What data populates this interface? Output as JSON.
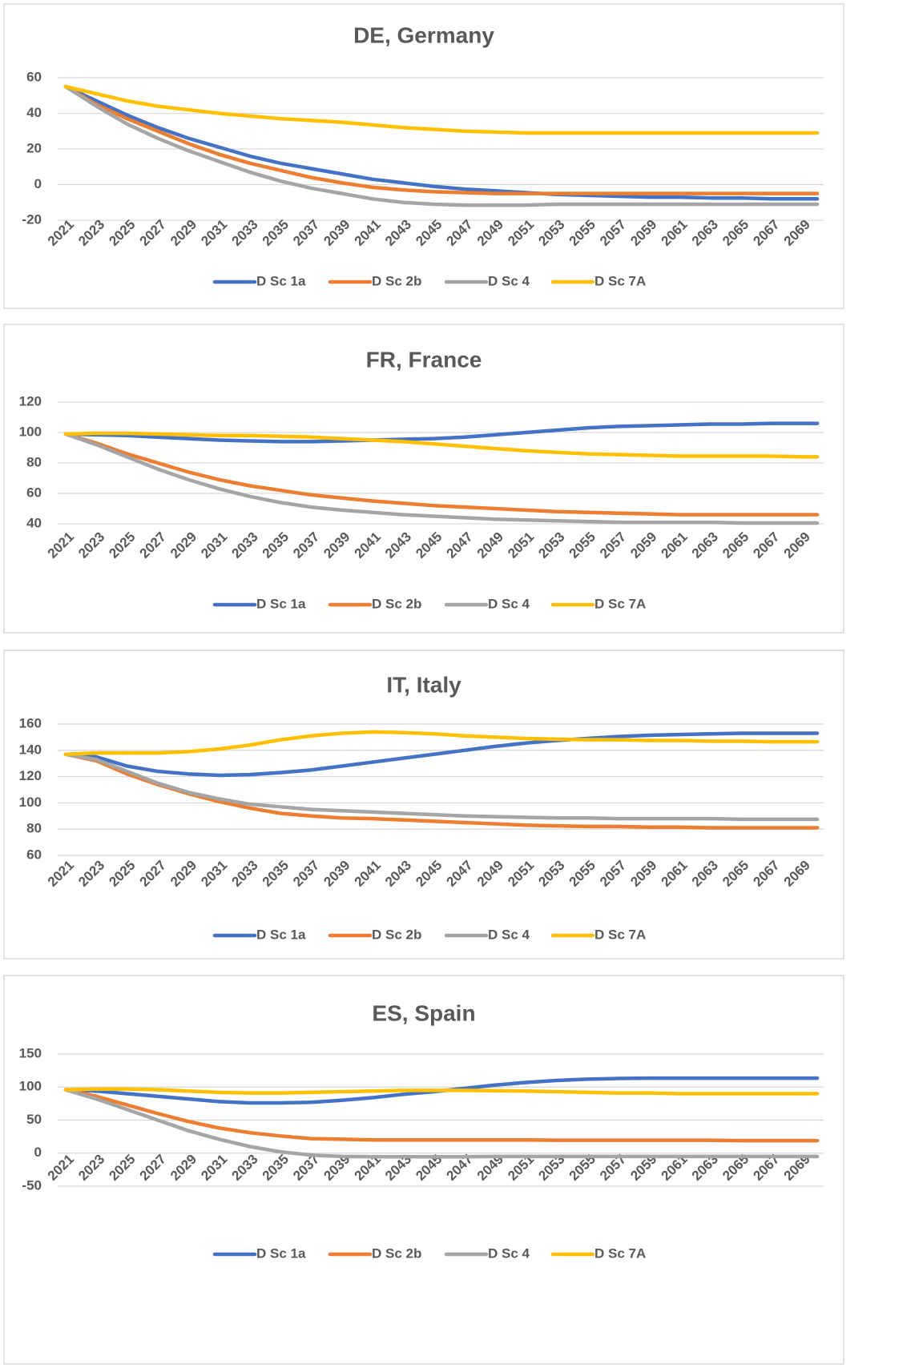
{
  "chart_data": [
    {
      "type": "line",
      "title": "DE, Germany",
      "x": [
        2021,
        2023,
        2025,
        2027,
        2029,
        2031,
        2033,
        2035,
        2037,
        2039,
        2041,
        2043,
        2045,
        2047,
        2049,
        2051,
        2053,
        2055,
        2057,
        2059,
        2061,
        2063,
        2065,
        2067,
        2069,
        2070
      ],
      "xlim": [
        2021,
        2070
      ],
      "xticks": [
        2021,
        2023,
        2025,
        2027,
        2029,
        2031,
        2033,
        2035,
        2037,
        2039,
        2041,
        2043,
        2045,
        2047,
        2049,
        2051,
        2053,
        2055,
        2057,
        2059,
        2061,
        2063,
        2065,
        2067,
        2069
      ],
      "ylim": [
        -20,
        60
      ],
      "yticks": [
        -20,
        0,
        20,
        40,
        60
      ],
      "grid": true,
      "legend": "bottom",
      "series": [
        {
          "name": "D Sc 1a",
          "color": "#4472c4",
          "values": [
            55,
            47,
            39,
            32,
            26,
            21,
            16,
            12,
            9,
            6,
            3,
            1,
            -1,
            -2.5,
            -3.5,
            -4.5,
            -5.5,
            -6,
            -6.5,
            -7,
            -7,
            -7.5,
            -7.5,
            -8,
            -8,
            -8
          ]
        },
        {
          "name": "D Sc 2b",
          "color": "#ed7d31",
          "values": [
            55,
            45,
            37,
            30,
            23,
            17,
            12,
            8,
            4,
            1,
            -1.5,
            -3,
            -4,
            -4.5,
            -5,
            -5,
            -5,
            -5,
            -5,
            -5,
            -5,
            -5,
            -5,
            -5,
            -5,
            -5
          ]
        },
        {
          "name": "D Sc 4",
          "color": "#a5a5a5",
          "values": [
            55,
            44,
            34,
            26,
            19,
            13,
            7,
            2,
            -2,
            -5,
            -8,
            -10,
            -11,
            -11.5,
            -11.5,
            -11.5,
            -11,
            -11,
            -11,
            -11,
            -11,
            -11,
            -11,
            -11,
            -11,
            -11
          ]
        },
        {
          "name": "D Sc 7A",
          "color": "#ffc000",
          "values": [
            55,
            51,
            47,
            44,
            42,
            40,
            38.5,
            37,
            36,
            35,
            33.5,
            32,
            31,
            30,
            29.5,
            29,
            29,
            29,
            29,
            29,
            29,
            29,
            29,
            29,
            29,
            29
          ]
        }
      ]
    },
    {
      "type": "line",
      "title": "FR, France",
      "x": [
        2021,
        2023,
        2025,
        2027,
        2029,
        2031,
        2033,
        2035,
        2037,
        2039,
        2041,
        2043,
        2045,
        2047,
        2049,
        2051,
        2053,
        2055,
        2057,
        2059,
        2061,
        2063,
        2065,
        2067,
        2069,
        2070
      ],
      "xlim": [
        2021,
        2070
      ],
      "xticks": [
        2021,
        2023,
        2025,
        2027,
        2029,
        2031,
        2033,
        2035,
        2037,
        2039,
        2041,
        2043,
        2045,
        2047,
        2049,
        2051,
        2053,
        2055,
        2057,
        2059,
        2061,
        2063,
        2065,
        2067,
        2069
      ],
      "ylim": [
        40,
        120
      ],
      "yticks": [
        40,
        60,
        80,
        100,
        120
      ],
      "grid": true,
      "legend": "bottom",
      "series": [
        {
          "name": "D Sc 1a",
          "color": "#4472c4",
          "values": [
            99,
            98.5,
            98,
            97,
            96,
            95,
            94.5,
            94,
            94,
            94.5,
            95,
            95.5,
            96,
            97,
            98.5,
            100,
            101.5,
            103,
            104,
            104.5,
            105,
            105.5,
            105.5,
            106,
            106,
            106
          ]
        },
        {
          "name": "D Sc 2b",
          "color": "#ed7d31",
          "values": [
            99,
            93,
            86,
            80,
            74,
            69,
            65,
            62,
            59,
            57,
            55,
            53.5,
            52,
            51,
            50,
            49,
            48,
            47.5,
            47,
            46.5,
            46,
            46,
            46,
            46,
            46,
            46
          ]
        },
        {
          "name": "D Sc 4",
          "color": "#a5a5a5",
          "values": [
            99,
            92,
            84,
            76,
            69,
            63,
            58,
            54,
            51,
            49,
            47.5,
            46,
            45,
            44,
            43,
            42.5,
            42,
            41.5,
            41,
            41,
            41,
            41,
            40.5,
            40.5,
            40.5,
            40.5
          ]
        },
        {
          "name": "D Sc 7A",
          "color": "#ffc000",
          "values": [
            99,
            99.5,
            99.5,
            99,
            98.5,
            98,
            98,
            97.5,
            97,
            96,
            95,
            94,
            92.5,
            91,
            89.5,
            88,
            87,
            86,
            85.5,
            85,
            84.5,
            84.5,
            84.5,
            84.5,
            84,
            84
          ]
        }
      ]
    },
    {
      "type": "line",
      "title": "IT, Italy",
      "x": [
        2021,
        2023,
        2025,
        2027,
        2029,
        2031,
        2033,
        2035,
        2037,
        2039,
        2041,
        2043,
        2045,
        2047,
        2049,
        2051,
        2053,
        2055,
        2057,
        2059,
        2061,
        2063,
        2065,
        2067,
        2069,
        2070
      ],
      "xlim": [
        2021,
        2070
      ],
      "xticks": [
        2021,
        2023,
        2025,
        2027,
        2029,
        2031,
        2033,
        2035,
        2037,
        2039,
        2041,
        2043,
        2045,
        2047,
        2049,
        2051,
        2053,
        2055,
        2057,
        2059,
        2061,
        2063,
        2065,
        2067,
        2069
      ],
      "ylim": [
        60,
        160
      ],
      "yticks": [
        60,
        80,
        100,
        120,
        140,
        160
      ],
      "grid": true,
      "legend": "bottom",
      "series": [
        {
          "name": "D Sc 1a",
          "color": "#4472c4",
          "values": [
            137,
            135,
            128,
            124,
            122,
            121,
            121.5,
            123,
            125,
            128,
            131,
            134,
            137,
            140,
            143,
            145.5,
            147.5,
            149,
            150.5,
            151.5,
            152,
            152.5,
            153,
            153,
            153,
            153
          ]
        },
        {
          "name": "D Sc 2b",
          "color": "#ed7d31",
          "values": [
            137,
            132,
            122,
            114,
            107,
            101,
            96,
            92,
            90,
            88.5,
            88,
            87,
            86,
            85,
            84,
            83,
            82.5,
            82,
            82,
            81.5,
            81.5,
            81,
            81,
            81,
            81,
            81
          ]
        },
        {
          "name": "D Sc 4",
          "color": "#a5a5a5",
          "values": [
            137,
            133,
            124,
            115,
            108,
            103,
            99,
            97,
            95,
            94,
            93,
            92,
            91,
            90,
            89.5,
            89,
            88.5,
            88.5,
            88,
            88,
            88,
            88,
            87.5,
            87.5,
            87.5,
            87.5
          ]
        },
        {
          "name": "D Sc 7A",
          "color": "#ffc000",
          "values": [
            137,
            138,
            138,
            138,
            139,
            141,
            144,
            148,
            151,
            153,
            154,
            153.5,
            152.5,
            151,
            150,
            149,
            148.5,
            148,
            148,
            147.5,
            147.5,
            147,
            147,
            146.5,
            146.5,
            146.5
          ]
        }
      ]
    },
    {
      "type": "line",
      "title": "ES, Spain",
      "x": [
        2021,
        2023,
        2025,
        2027,
        2029,
        2031,
        2033,
        2035,
        2037,
        2039,
        2041,
        2043,
        2045,
        2047,
        2049,
        2051,
        2053,
        2055,
        2057,
        2059,
        2061,
        2063,
        2065,
        2067,
        2069,
        2070
      ],
      "xlim": [
        2021,
        2070
      ],
      "xticks": [
        2021,
        2023,
        2025,
        2027,
        2029,
        2031,
        2033,
        2035,
        2037,
        2039,
        2041,
        2043,
        2045,
        2047,
        2049,
        2051,
        2053,
        2055,
        2057,
        2059,
        2061,
        2063,
        2065,
        2067,
        2069
      ],
      "ylim": [
        -50,
        150
      ],
      "yticks": [
        -50,
        0,
        50,
        100,
        150
      ],
      "grid": true,
      "legend": "bottom",
      "series": [
        {
          "name": "D Sc 1a",
          "color": "#4472c4",
          "values": [
            96,
            94,
            90,
            86,
            82,
            78,
            76,
            76,
            77,
            80,
            84,
            89,
            93,
            98,
            103,
            107,
            110,
            112,
            113,
            113.5,
            113.5,
            113.5,
            113.5,
            113.5,
            113.5,
            113.5
          ]
        },
        {
          "name": "D Sc 2b",
          "color": "#ed7d31",
          "values": [
            96,
            86,
            73,
            60,
            48,
            38,
            31,
            26,
            22,
            21,
            20,
            20,
            20,
            20,
            20,
            20,
            19.5,
            19.5,
            19.5,
            19.5,
            19.5,
            19.5,
            19,
            19,
            19,
            19
          ]
        },
        {
          "name": "D Sc 4",
          "color": "#a5a5a5",
          "values": [
            96,
            82,
            66,
            50,
            34,
            21,
            10,
            2,
            -3,
            -5,
            -5.5,
            -5.5,
            -5.5,
            -5.5,
            -5,
            -5,
            -5,
            -5,
            -5,
            -5,
            -5,
            -5,
            -5,
            -5,
            -5,
            -5
          ]
        },
        {
          "name": "D Sc 7A",
          "color": "#ffc000",
          "values": [
            96,
            97,
            97,
            96,
            94,
            92,
            91,
            91,
            92,
            93,
            94,
            95,
            95,
            95,
            94.5,
            94,
            93,
            92,
            91,
            91,
            90,
            90,
            90,
            90,
            90,
            90
          ]
        }
      ]
    }
  ]
}
